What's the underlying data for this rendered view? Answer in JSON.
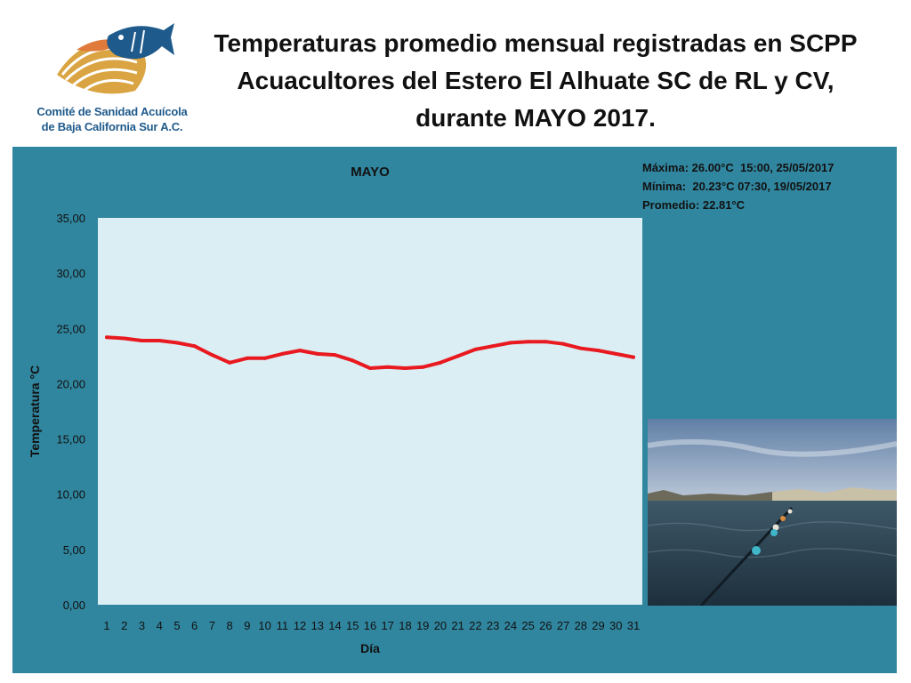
{
  "header": {
    "title_lines": [
      "Temperaturas promedio mensual registradas en SCPP",
      "Acuacultores del Estero El Alhuate SC de RL y CV,",
      "durante MAYO 2017."
    ]
  },
  "logo": {
    "line1": "Comité de Sanidad Acuícola",
    "line2": "de Baja California Sur A.C.",
    "icon": "fish-and-shell-logo",
    "colors": {
      "fish": "#1f5a8c",
      "shell": "#d9a441",
      "text": "#1f5a8c"
    }
  },
  "stats": {
    "max": "Máxima: 26.00°C  15:00, 25/05/2017",
    "min": "Mínima:  20.23°C 07:30, 19/05/2017",
    "avg": "Promedio: 22.81°C"
  },
  "photo": {
    "icon": "estuary-photo"
  },
  "chart_data": {
    "type": "line",
    "title": "MAYO",
    "xlabel": "Día",
    "ylabel": "Temperatura °C",
    "ylim": [
      0,
      35
    ],
    "yticks": [
      "0,00",
      "5,00",
      "10,00",
      "15,00",
      "20,00",
      "25,00",
      "30,00",
      "35,00"
    ],
    "categories": [
      "1",
      "2",
      "3",
      "4",
      "5",
      "6",
      "7",
      "8",
      "9",
      "10",
      "11",
      "12",
      "13",
      "14",
      "15",
      "16",
      "17",
      "18",
      "19",
      "20",
      "21",
      "22",
      "23",
      "24",
      "25",
      "26",
      "27",
      "28",
      "29",
      "30",
      "31"
    ],
    "series": [
      {
        "color": "#e8191f",
        "values": [
          24.2,
          24.1,
          23.9,
          23.9,
          23.7,
          23.4,
          22.6,
          21.9,
          22.3,
          22.3,
          22.7,
          23.0,
          22.7,
          22.6,
          22.1,
          21.4,
          21.5,
          21.4,
          21.5,
          21.9,
          22.5,
          23.1,
          23.4,
          23.7,
          23.8,
          23.8,
          23.6,
          23.2,
          23.0,
          22.7,
          22.4
        ]
      }
    ],
    "grid": false,
    "legend": "none",
    "colors": {
      "panel": "#31869f",
      "plot_area": "#dbeef4",
      "line": "#e8191f"
    }
  }
}
